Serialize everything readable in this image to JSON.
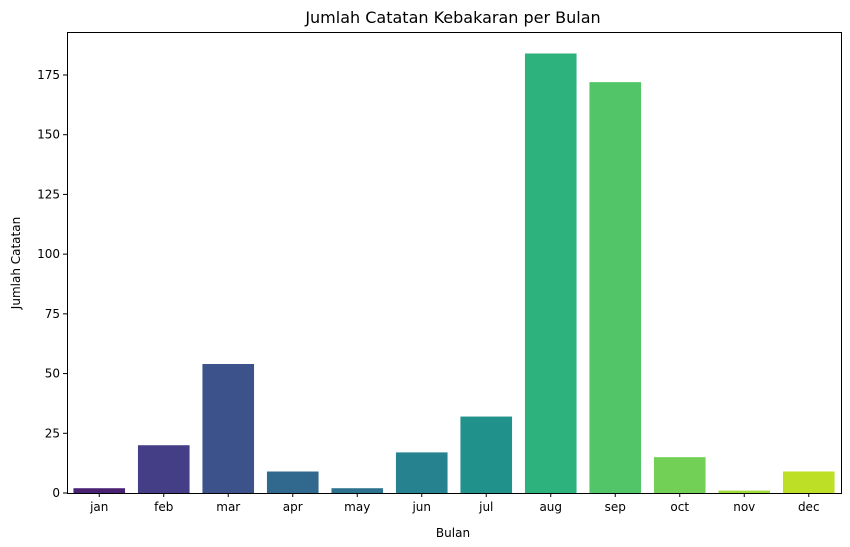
{
  "chart_data": {
    "type": "bar",
    "title": "Jumlah Catatan Kebakaran per Bulan",
    "xlabel": "Bulan",
    "ylabel": "Jumlah Catatan",
    "categories": [
      "jan",
      "feb",
      "mar",
      "apr",
      "may",
      "jun",
      "jul",
      "aug",
      "sep",
      "oct",
      "nov",
      "dec"
    ],
    "values": [
      2,
      20,
      54,
      9,
      2,
      17,
      32,
      184,
      172,
      15,
      1,
      9
    ],
    "colors": [
      "#482173",
      "#433e85",
      "#3b528b",
      "#31688e",
      "#2c728e",
      "#26828e",
      "#21918c",
      "#2db27d",
      "#52c569",
      "#73d056",
      "#a0da39",
      "#bddf26"
    ],
    "ylim": [
      0,
      193
    ],
    "yticks": [
      0,
      25,
      50,
      75,
      100,
      125,
      150,
      175
    ],
    "grid": false,
    "legend": "none"
  }
}
